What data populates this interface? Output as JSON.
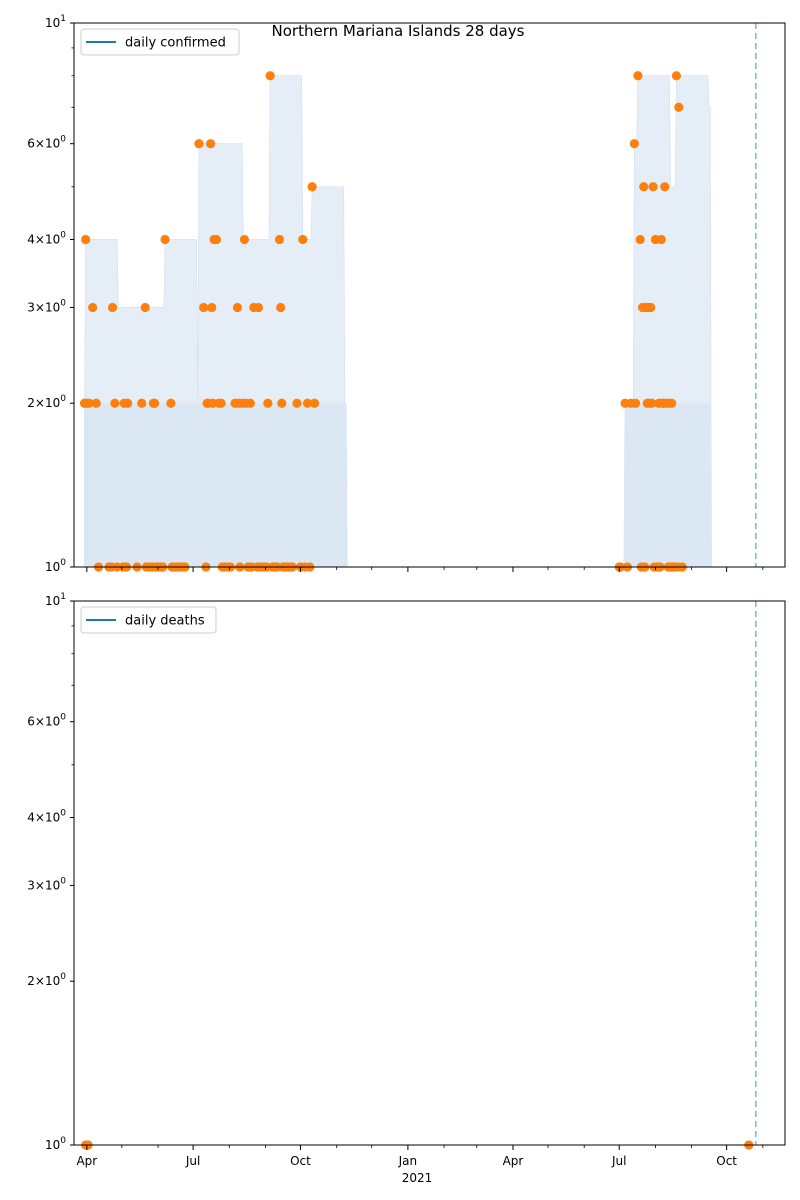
{
  "title": "Northern Mariana Islands 28 days",
  "chart_data": [
    {
      "type": "scatter",
      "panel": "top",
      "legend": "daily confirmed",
      "legend_location": "upper left",
      "yscale": "log",
      "ylim": [
        1,
        10
      ],
      "y_tick_labels": [
        "10^0",
        "2×10^0",
        "3×10^0",
        "4×10^0",
        "6×10^0",
        "10^1"
      ],
      "x_tick_labels": [
        "Apr",
        "Jul",
        "Oct",
        "Jan",
        "Apr",
        "Jul",
        "Oct"
      ],
      "x_year_label": "2021",
      "xlim": [
        "2020-03-21",
        "2021-11-20"
      ],
      "vline_date": "2021-10-26",
      "points": [
        [
          "2020-03-30",
          2
        ],
        [
          "2020-03-31",
          4
        ],
        [
          "2020-04-01",
          2
        ],
        [
          "2020-04-03",
          2
        ],
        [
          "2020-04-06",
          3
        ],
        [
          "2020-04-09",
          2
        ],
        [
          "2020-04-11",
          1
        ],
        [
          "2020-04-20",
          1
        ],
        [
          "2020-04-22",
          1
        ],
        [
          "2020-04-23",
          3
        ],
        [
          "2020-04-25",
          2
        ],
        [
          "2020-04-27",
          1
        ],
        [
          "2020-05-02",
          1
        ],
        [
          "2020-05-03",
          2
        ],
        [
          "2020-05-04",
          1
        ],
        [
          "2020-05-05",
          1
        ],
        [
          "2020-05-06",
          2
        ],
        [
          "2020-05-14",
          1
        ],
        [
          "2020-05-18",
          2
        ],
        [
          "2020-05-21",
          3
        ],
        [
          "2020-05-22",
          1
        ],
        [
          "2020-05-25",
          1
        ],
        [
          "2020-05-27",
          1
        ],
        [
          "2020-05-28",
          2
        ],
        [
          "2020-05-29",
          2
        ],
        [
          "2020-05-30",
          1
        ],
        [
          "2020-06-01",
          1
        ],
        [
          "2020-06-03",
          1
        ],
        [
          "2020-06-05",
          1
        ],
        [
          "2020-06-07",
          4
        ],
        [
          "2020-06-12",
          2
        ],
        [
          "2020-06-13",
          1
        ],
        [
          "2020-06-16",
          1
        ],
        [
          "2020-06-18",
          1
        ],
        [
          "2020-06-20",
          1
        ],
        [
          "2020-06-22",
          1
        ],
        [
          "2020-06-24",
          1
        ],
        [
          "2020-07-06",
          6
        ],
        [
          "2020-07-10",
          3
        ],
        [
          "2020-07-12",
          1
        ],
        [
          "2020-07-13",
          2
        ],
        [
          "2020-07-14",
          2
        ],
        [
          "2020-07-16",
          6
        ],
        [
          "2020-07-17",
          3
        ],
        [
          "2020-07-18",
          2
        ],
        [
          "2020-07-19",
          4
        ],
        [
          "2020-07-21",
          4
        ],
        [
          "2020-07-23",
          2
        ],
        [
          "2020-07-25",
          2
        ],
        [
          "2020-07-26",
          1
        ],
        [
          "2020-07-28",
          1
        ],
        [
          "2020-07-31",
          1
        ],
        [
          "2020-08-02",
          1
        ],
        [
          "2020-08-06",
          2
        ],
        [
          "2020-08-08",
          3
        ],
        [
          "2020-08-09",
          2
        ],
        [
          "2020-08-10",
          1
        ],
        [
          "2020-08-12",
          2
        ],
        [
          "2020-08-14",
          4
        ],
        [
          "2020-08-15",
          2
        ],
        [
          "2020-08-17",
          1
        ],
        [
          "2020-08-19",
          2
        ],
        [
          "2020-08-20",
          1
        ],
        [
          "2020-08-22",
          3
        ],
        [
          "2020-08-25",
          1
        ],
        [
          "2020-08-26",
          3
        ],
        [
          "2020-08-28",
          1
        ],
        [
          "2020-08-31",
          1
        ],
        [
          "2020-09-02",
          1
        ],
        [
          "2020-09-03",
          2
        ],
        [
          "2020-09-05",
          8
        ],
        [
          "2020-09-07",
          1
        ],
        [
          "2020-09-09",
          1
        ],
        [
          "2020-09-11",
          1
        ],
        [
          "2020-09-13",
          4
        ],
        [
          "2020-09-14",
          3
        ],
        [
          "2020-09-15",
          2
        ],
        [
          "2020-09-16",
          1
        ],
        [
          "2020-09-18",
          1
        ],
        [
          "2020-09-20",
          1
        ],
        [
          "2020-09-22",
          1
        ],
        [
          "2020-09-24",
          1
        ],
        [
          "2020-09-28",
          2
        ],
        [
          "2020-10-01",
          1
        ],
        [
          "2020-10-03",
          4
        ],
        [
          "2020-10-05",
          1
        ],
        [
          "2020-10-07",
          2
        ],
        [
          "2020-10-09",
          1
        ],
        [
          "2020-10-11",
          5
        ],
        [
          "2020-10-13",
          2
        ],
        [
          "2021-07-01",
          1
        ],
        [
          "2021-07-02",
          1
        ],
        [
          "2021-07-06",
          2
        ],
        [
          "2021-07-08",
          1
        ],
        [
          "2021-07-11",
          2
        ],
        [
          "2021-07-14",
          6
        ],
        [
          "2021-07-15",
          2
        ],
        [
          "2021-07-17",
          8
        ],
        [
          "2021-07-19",
          4
        ],
        [
          "2021-07-20",
          1
        ],
        [
          "2021-07-21",
          3
        ],
        [
          "2021-07-22",
          5
        ],
        [
          "2021-07-23",
          1
        ],
        [
          "2021-07-24",
          3
        ],
        [
          "2021-07-25",
          2
        ],
        [
          "2021-07-26",
          3
        ],
        [
          "2021-07-27",
          2
        ],
        [
          "2021-07-28",
          3
        ],
        [
          "2021-07-29",
          2
        ],
        [
          "2021-07-30",
          5
        ],
        [
          "2021-07-31",
          1
        ],
        [
          "2021-08-01",
          4
        ],
        [
          "2021-08-02",
          1
        ],
        [
          "2021-08-03",
          1
        ],
        [
          "2021-08-04",
          2
        ],
        [
          "2021-08-05",
          1
        ],
        [
          "2021-08-06",
          4
        ],
        [
          "2021-08-07",
          2
        ],
        [
          "2021-08-08",
          2
        ],
        [
          "2021-08-09",
          5
        ],
        [
          "2021-08-10",
          2
        ],
        [
          "2021-08-12",
          1
        ],
        [
          "2021-08-13",
          2
        ],
        [
          "2021-08-14",
          1
        ],
        [
          "2021-08-15",
          2
        ],
        [
          "2021-08-16",
          1
        ],
        [
          "2021-08-17",
          1
        ],
        [
          "2021-08-19",
          8
        ],
        [
          "2021-08-20",
          1
        ],
        [
          "2021-08-21",
          7
        ],
        [
          "2021-08-24",
          1
        ]
      ]
    },
    {
      "type": "scatter",
      "panel": "bottom",
      "legend": "daily deaths",
      "legend_location": "upper left",
      "yscale": "log",
      "ylim": [
        1,
        10
      ],
      "y_tick_labels": [
        "10^0",
        "2×10^0",
        "3×10^0",
        "4×10^0",
        "6×10^0",
        "10^1"
      ],
      "x_tick_labels": [
        "Apr",
        "Jul",
        "Oct",
        "Jan",
        "Apr",
        "Jul",
        "Oct"
      ],
      "x_year_label": "2021",
      "xlim": [
        "2020-03-21",
        "2021-11-20"
      ],
      "vline_date": "2021-10-26",
      "points": [
        [
          "2020-03-31",
          1
        ],
        [
          "2020-04-02",
          1
        ],
        [
          "2021-10-20",
          1
        ]
      ]
    }
  ],
  "colors": {
    "series_line": "#1f77b4",
    "points": "#ff7f0e",
    "band_fill": "#cfe0f0",
    "vline": "#7fb0dc"
  }
}
